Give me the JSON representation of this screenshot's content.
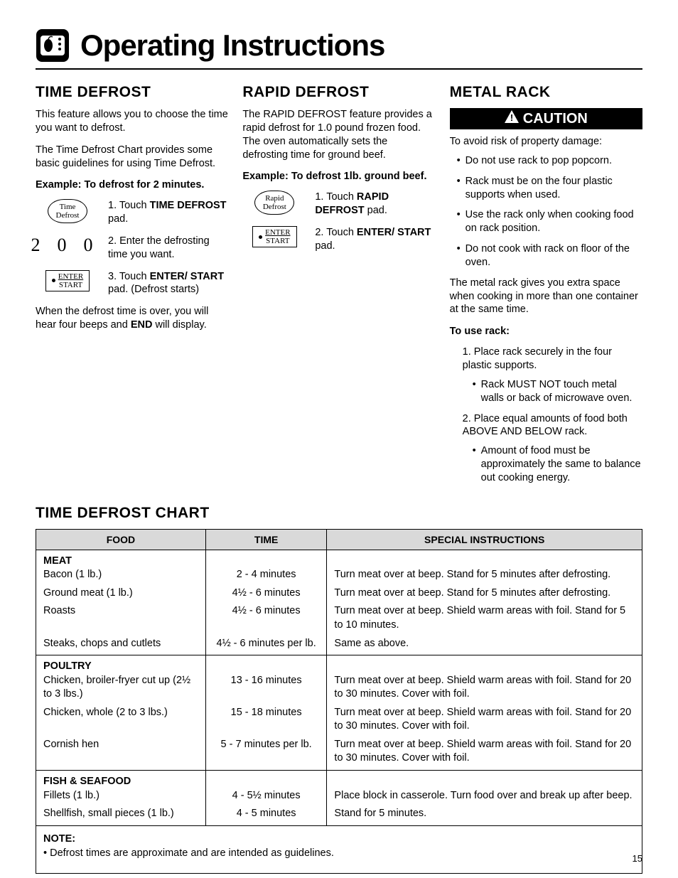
{
  "page_title": "Operating Instructions",
  "page_number": "15",
  "time_defrost": {
    "heading": "TIME DEFROST",
    "intro1": "This feature allows you to choose the time you want to defrost.",
    "intro2": "The Time Defrost Chart provides some basic guidelines for using Time Defrost.",
    "example_label": "Example: To defrost for 2 minutes.",
    "pad1_line1": "Time",
    "pad1_line2": "Defrost",
    "digits": "200",
    "pad3_line1": "ENTER",
    "pad3_line2": "START",
    "step1_pre": "1. Touch ",
    "step1_bold": "TIME DEFROST",
    "step1_post": " pad.",
    "step2": "2. Enter the defrosting time you want.",
    "step3_pre": "3. Touch ",
    "step3_bold": "ENTER/ START",
    "step3_post": " pad. (Defrost starts)",
    "outro_pre": "When the defrost time is over, you will hear four beeps and ",
    "outro_bold": "END",
    "outro_post": " will display."
  },
  "rapid_defrost": {
    "heading": "RAPID DEFROST",
    "intro": "The RAPID DEFROST feature provides a rapid defrost for 1.0 pound frozen food. The oven automatically sets the defrosting time for ground beef.",
    "example_label": "Example: To defrost 1lb. ground beef.",
    "pad1_line1": "Rapid",
    "pad1_line2": "Defrost",
    "pad2_line1": "ENTER",
    "pad2_line2": "START",
    "step1_pre": "1. Touch ",
    "step1_bold": "RAPID DEFROST",
    "step1_post": " pad.",
    "step2_pre": "2. Touch ",
    "step2_bold": "ENTER/ START",
    "step2_post": " pad."
  },
  "metal_rack": {
    "heading": "METAL RACK",
    "caution_label": "CAUTION",
    "caution_intro": "To avoid risk of property damage:",
    "caution_items": [
      "Do not use rack to pop popcorn.",
      "Rack must be on the four plastic supports when used.",
      "Use the rack only when cooking food on rack position.",
      "Do not cook with rack on floor of the oven."
    ],
    "para": "The metal rack gives you extra space when cooking in more than one container at the same time.",
    "use_label": "To use rack:",
    "step1": "1. Place rack securely in the four plastic supports.",
    "step1_sub": "Rack MUST NOT touch metal walls or back of microwave oven.",
    "step2": "2. Place equal amounts of food both ABOVE AND BELOW rack.",
    "step2_sub": "Amount of food must be approximately the same to balance out cooking energy."
  },
  "chart": {
    "heading": "TIME DEFROST CHART",
    "col1": "FOOD",
    "col2": "TIME",
    "col3": "SPECIAL INSTRUCTIONS",
    "col_widths": [
      "28%",
      "20%",
      "52%"
    ],
    "header_bg": "#d9d9d9",
    "sections": [
      {
        "category": "MEAT",
        "rows": [
          {
            "food": "Bacon (1 lb.)",
            "time": "2 - 4 minutes",
            "inst": "Turn meat over at beep. Stand for 5 minutes after defrosting."
          },
          {
            "food": "Ground meat (1 lb.)",
            "time": "4½ - 6 minutes",
            "inst": "Turn meat over at beep. Stand for 5 minutes after defrosting."
          },
          {
            "food": "Roasts",
            "time": "4½ - 6 minutes",
            "inst": "Turn meat over at beep. Shield warm areas with foil. Stand for 5 to 10 minutes."
          },
          {
            "food": "Steaks, chops and cutlets",
            "time": "4½ - 6 minutes per lb.",
            "inst": "Same as above."
          }
        ]
      },
      {
        "category": "POULTRY",
        "rows": [
          {
            "food": "Chicken, broiler-fryer cut up (2½ to 3 lbs.)",
            "time": "13 - 16 minutes",
            "inst": "Turn meat over at beep. Shield warm areas with foil. Stand for 20 to 30 minutes. Cover with foil."
          },
          {
            "food": "Chicken, whole (2 to 3 lbs.)",
            "time": "15 - 18 minutes",
            "inst": "Turn meat over at beep. Shield warm areas with foil. Stand for 20 to 30 minutes. Cover with foil."
          },
          {
            "food": "Cornish hen",
            "time": "5 - 7 minutes per lb.",
            "inst": "Turn meat over at beep. Shield warm areas with foil. Stand for 20 to 30 minutes. Cover with foil."
          }
        ]
      },
      {
        "category": "FISH & SEAFOOD",
        "rows": [
          {
            "food": "Fillets (1 lb.)",
            "time": "4 - 5½ minutes",
            "inst": "Place block in casserole. Turn food over and break up after beep."
          },
          {
            "food": "Shellfish, small pieces (1 lb.)",
            "time": "4 - 5 minutes",
            "inst": "Stand for 5 minutes."
          }
        ]
      }
    ],
    "note_label": "NOTE:",
    "note_text": "• Defrost times are approximate and are intended as guidelines."
  }
}
